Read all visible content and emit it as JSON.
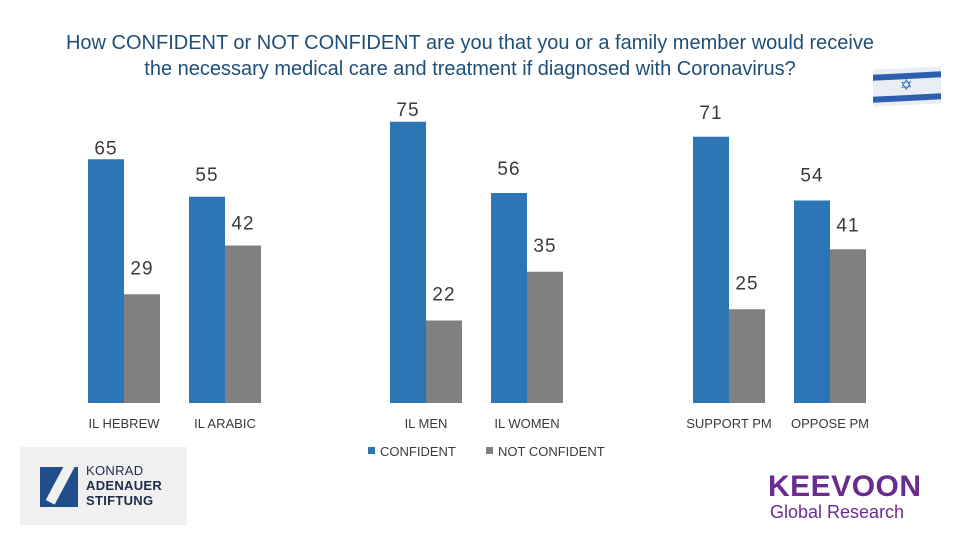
{
  "title": {
    "line1": "How CONFIDENT or NOT CONFIDENT are you that you or a family member would receive",
    "line2": "the necessary medical care and treatment if diagnosed with  Coronavirus?"
  },
  "chart_data": {
    "type": "bar",
    "title": "How CONFIDENT or NOT CONFIDENT are you that you or a family member would receive the necessary medical care and treatment if diagnosed with  Coronavirus?",
    "categories": [
      "IL HEBREW",
      "IL ARABIC",
      "IL MEN",
      "IL WOMEN",
      "SUPPORT PM",
      "OPPOSE PM"
    ],
    "series": [
      {
        "name": "CONFIDENT",
        "values": [
          65,
          55,
          75,
          56,
          71,
          54
        ],
        "color": "#2e75b6"
      },
      {
        "name": "NOT CONFIDENT",
        "values": [
          29,
          42,
          22,
          35,
          25,
          41
        ],
        "color": "#808080"
      }
    ],
    "xlabel": "",
    "ylabel": "",
    "ylim": [
      0,
      100
    ],
    "grid": false,
    "legend": "bottom-center",
    "data_labels": true
  },
  "logos": {
    "left": {
      "line1": "KONRAD",
      "line2": "ADENAUER",
      "line3": "STIFTUNG"
    },
    "right": {
      "line1": "KEEVOON",
      "line2": "Global Research"
    }
  },
  "icons": {
    "flag": "israel-flag-icon"
  }
}
